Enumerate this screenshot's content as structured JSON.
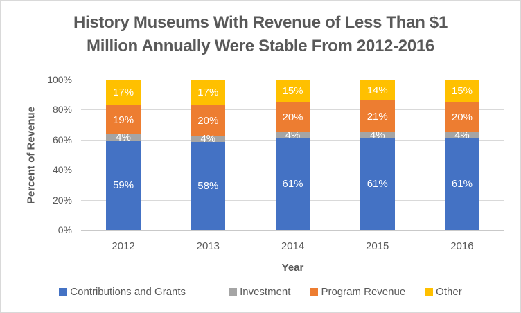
{
  "chart_data": {
    "type": "bar",
    "subtype": "stacked-100",
    "title": "History Museums With Revenue of Less Than $1 Million Annually Were Stable From 2012-2016",
    "title_line1": "History Museums With Revenue of Less Than $1",
    "title_line2": "Million Annually Were Stable From 2012-2016",
    "xlabel": "Year",
    "ylabel": "Percent of Revenue",
    "categories": [
      "2012",
      "2013",
      "2014",
      "2015",
      "2016"
    ],
    "series": [
      {
        "name": "Contributions and Grants",
        "color": "#4472C4",
        "values": [
          59,
          58,
          61,
          61,
          61
        ]
      },
      {
        "name": "Investment",
        "color": "#A5A5A5",
        "values": [
          4,
          4,
          4,
          4,
          4
        ]
      },
      {
        "name": "Program Revenue",
        "color": "#ED7D31",
        "values": [
          19,
          20,
          20,
          21,
          20
        ]
      },
      {
        "name": "Other",
        "color": "#FFC000",
        "values": [
          17,
          17,
          15,
          14,
          15
        ]
      }
    ],
    "data_label_suffix": "%",
    "y_ticks": [
      "0%",
      "20%",
      "40%",
      "60%",
      "80%",
      "100%"
    ],
    "ylim": [
      0,
      100
    ],
    "grid": true,
    "legend_position": "bottom",
    "colors": {
      "text": "#595959",
      "data_label": "#FFFFFF",
      "gridline": "#D9D9D9",
      "axis_line": "#C9C9C9",
      "border": "#D9D9D9",
      "background": "#FFFFFF"
    }
  }
}
